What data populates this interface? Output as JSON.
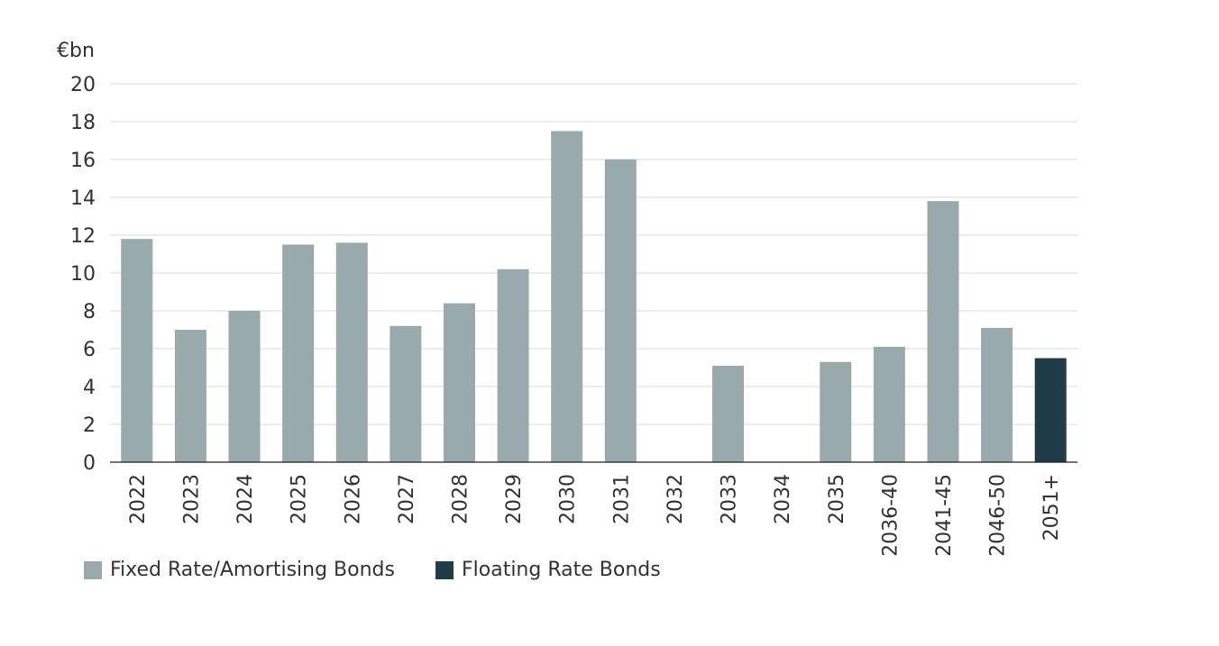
{
  "chart_data": {
    "type": "bar",
    "unit_label": "€bn",
    "categories": [
      "2022",
      "2023",
      "2024",
      "2025",
      "2026",
      "2027",
      "2028",
      "2029",
      "2030",
      "2031",
      "2032",
      "2033",
      "2034",
      "2035",
      "2036-40",
      "2041-45",
      "2046-50",
      "2051+"
    ],
    "series": [
      {
        "name": "Fixed Rate/Amortising Bonds",
        "color": "#98aaab",
        "values": [
          11.8,
          7.0,
          8.0,
          11.5,
          11.6,
          7.2,
          8.4,
          10.2,
          17.5,
          16.0,
          0,
          5.1,
          0,
          5.3,
          6.1,
          13.8,
          7.1,
          0
        ]
      },
      {
        "name": "Floating Rate Bonds",
        "color": "#1f3c48",
        "values": [
          0,
          0,
          0,
          0,
          0,
          0,
          0,
          0,
          0,
          0,
          0,
          0,
          0,
          0,
          0,
          0,
          0,
          5.5
        ]
      }
    ],
    "ylim": [
      0,
      20
    ],
    "yticks": [
      0,
      2,
      4,
      6,
      8,
      10,
      12,
      14,
      16,
      18,
      20
    ],
    "grid": true,
    "legend_position": "bottom-left"
  }
}
